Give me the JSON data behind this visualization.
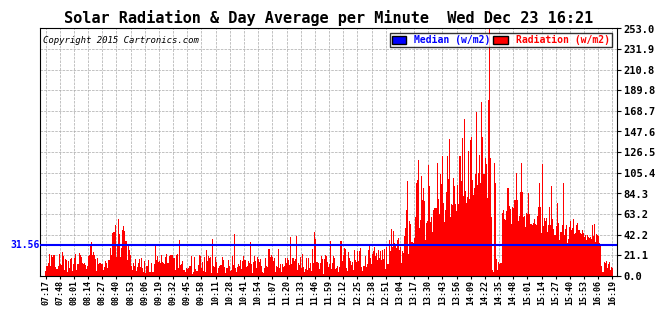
{
  "title": "Solar Radiation & Day Average per Minute  Wed Dec 23 16:21",
  "copyright": "Copyright 2015 Cartronics.com",
  "median_value": 31.56,
  "y_ticks": [
    0.0,
    21.1,
    42.2,
    63.2,
    84.3,
    105.4,
    126.5,
    147.6,
    168.7,
    189.8,
    210.8,
    231.9,
    253.0
  ],
  "y_max": 253.0,
  "y_min": 0.0,
  "bar_color": "#FF0000",
  "median_color": "#0000FF",
  "background_color": "#FFFFFF",
  "grid_color": "#AAAAAA",
  "title_fontsize": 11,
  "legend_blue_label": "Median (w/m2)",
  "legend_red_label": "Radiation (w/m2)",
  "x_labels": [
    "07:17",
    "07:48",
    "08:01",
    "08:14",
    "08:27",
    "08:40",
    "08:53",
    "09:06",
    "09:19",
    "09:32",
    "09:45",
    "09:58",
    "10:11",
    "10:28",
    "10:41",
    "10:54",
    "11:07",
    "11:20",
    "11:33",
    "11:46",
    "11:59",
    "12:12",
    "12:25",
    "12:38",
    "12:51",
    "13:04",
    "13:17",
    "13:30",
    "13:43",
    "13:56",
    "14:09",
    "14:22",
    "14:35",
    "14:48",
    "15:01",
    "15:14",
    "15:27",
    "15:40",
    "15:53",
    "16:06",
    "16:19"
  ]
}
